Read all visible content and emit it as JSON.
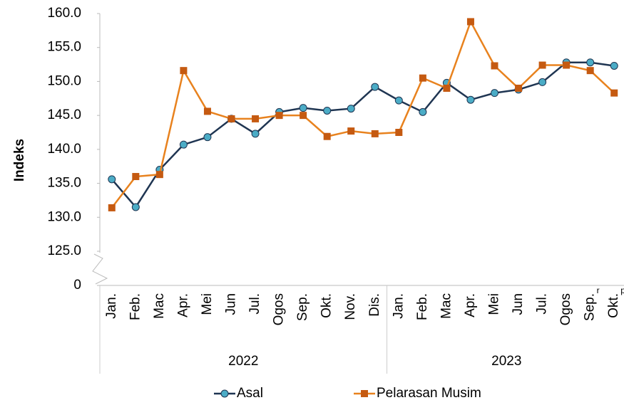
{
  "chart_data": {
    "type": "line",
    "y_label": "Indeks",
    "categories": [
      "Jan.",
      "Feb.",
      "Mac",
      "Apr.",
      "Mei",
      "Jun",
      "Jul.",
      "Ogos",
      "Sep.",
      "Okt.",
      "Nov.",
      "Dis.",
      "Jan.",
      "Feb.",
      "Mac",
      "Apr.",
      "Mei",
      "Jun",
      "Jul.",
      "Ogos",
      "Sep.",
      "Okt."
    ],
    "superscripts": [
      null,
      null,
      null,
      null,
      null,
      null,
      null,
      null,
      null,
      null,
      null,
      null,
      null,
      null,
      null,
      null,
      null,
      null,
      null,
      null,
      "r",
      "p"
    ],
    "groups": [
      {
        "name": "2022",
        "span": 12
      },
      {
        "name": "2023",
        "span": 10
      }
    ],
    "series": [
      {
        "name": "Asal",
        "color": "#1f3552",
        "marker": "circle",
        "marker_color": "#4bacc6",
        "values": [
          135.6,
          131.5,
          137.0,
          140.7,
          141.8,
          144.5,
          142.3,
          145.5,
          146.1,
          145.7,
          146.0,
          149.2,
          147.2,
          145.5,
          149.8,
          147.3,
          148.3,
          148.8,
          149.9,
          152.8,
          152.8,
          152.3
        ]
      },
      {
        "name": "Pelarasan Musim",
        "color": "#e8821e",
        "marker": "square",
        "marker_color": "#c55a11",
        "values": [
          131.4,
          136.0,
          136.3,
          151.6,
          145.6,
          144.5,
          144.5,
          145.0,
          145.0,
          141.9,
          142.7,
          142.3,
          142.5,
          150.5,
          149.0,
          158.8,
          152.3,
          149.0,
          152.4,
          152.4,
          151.6,
          148.3
        ]
      }
    ],
    "ylim": [
      0,
      160
    ],
    "y_break": [
      0,
      125
    ],
    "yticks": [
      0,
      {
        "value": 125,
        "label": "125.0"
      },
      {
        "value": 130,
        "label": "130.0"
      },
      {
        "value": 135,
        "label": "135.0"
      },
      {
        "value": 140,
        "label": "140.0"
      },
      {
        "value": 145,
        "label": "145.0"
      },
      {
        "value": 150,
        "label": "150.0"
      },
      {
        "value": 155,
        "label": "155.0"
      },
      {
        "value": 160,
        "label": "160.0"
      }
    ],
    "legend": "bottom"
  }
}
